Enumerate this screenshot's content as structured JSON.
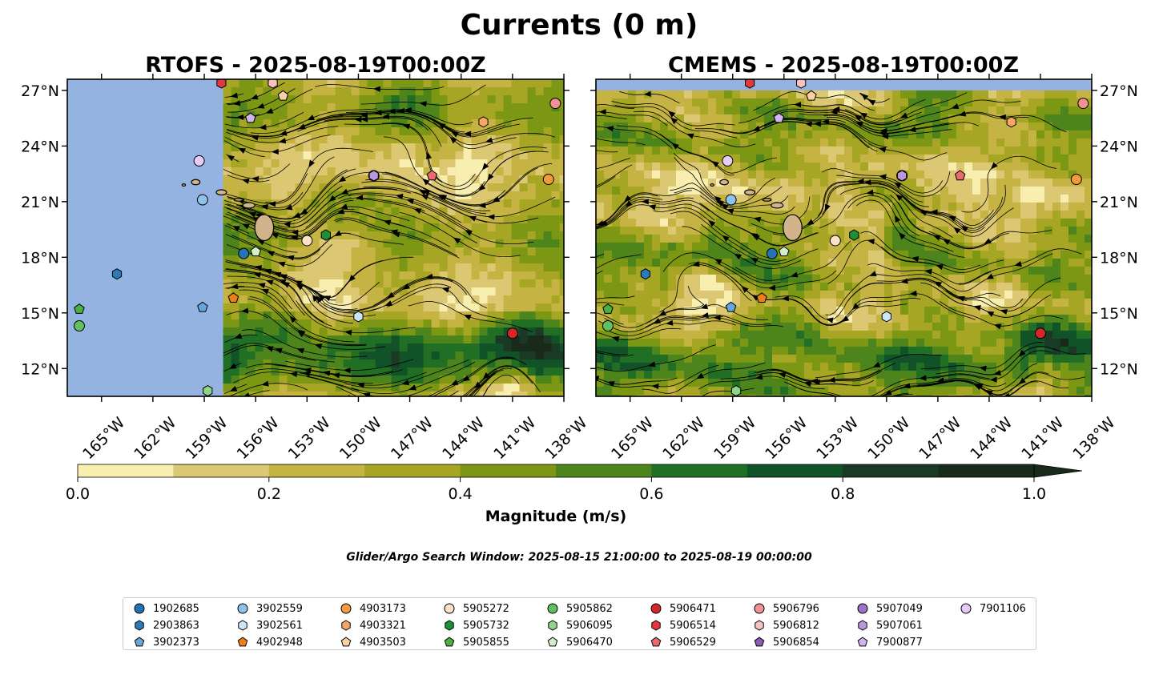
{
  "figure": {
    "title": "Currents (0 m)",
    "search_window": "Glider/Argo Search Window: 2025-08-15 21:00:00 to 2025-08-19 00:00:00"
  },
  "chart_data": [
    {
      "type": "map",
      "title": "RTOFS - 2025-08-19T00:00Z",
      "lon_range": [
        -167,
        -138
      ],
      "lat_range": [
        10.5,
        27.6
      ],
      "x_ticks": [
        "165°W",
        "162°W",
        "159°W",
        "156°W",
        "153°W",
        "150°W",
        "147°W",
        "144°W",
        "141°W",
        "138°W"
      ],
      "y_ticks": [
        "27°N",
        "24°N",
        "21°N",
        "18°N",
        "15°N",
        "12°N"
      ],
      "data_coverage_west_lon": -157.9
    },
    {
      "type": "map",
      "title": "CMEMS - 2025-08-19T00:00Z",
      "lon_range": [
        -167,
        -138
      ],
      "lat_range": [
        10.5,
        27.6
      ],
      "x_ticks": [
        "165°W",
        "162°W",
        "159°W",
        "156°W",
        "153°W",
        "150°W",
        "147°W",
        "144°W",
        "141°W",
        "138°W"
      ],
      "y_ticks": [
        "27°N",
        "24°N",
        "21°N",
        "18°N",
        "15°N",
        "12°N"
      ],
      "data_coverage_north_lat": 27.0
    }
  ],
  "colorbar": {
    "label": "Magnitude (m/s)",
    "min": 0.0,
    "max": 1.0,
    "extend": "max",
    "levels": [
      0.0,
      0.1,
      0.2,
      0.3,
      0.4,
      0.5,
      0.6,
      0.7,
      0.8,
      0.9,
      1.0
    ],
    "ticks": [
      "0.0",
      "0.2",
      "0.4",
      "0.6",
      "0.8",
      "1.0"
    ],
    "colors": [
      "#f7eeaf",
      "#dcc873",
      "#c5b443",
      "#a6a624",
      "#7c9714",
      "#4d841c",
      "#216f25",
      "#125228",
      "#1a3a25",
      "#1a2a1a"
    ]
  },
  "colors": {
    "ocean": "#94b3e0",
    "land": "#d2b48c"
  },
  "floats": [
    {
      "id": "1902685",
      "color": "#2474b5",
      "marker": "circle",
      "lon": -156.7,
      "lat": 18.2
    },
    {
      "id": "2903863",
      "color": "#2b7bb9",
      "marker": "hexagon",
      "lon": -164.1,
      "lat": 17.1
    },
    {
      "id": "3902373",
      "color": "#64a7dd",
      "marker": "pentagon",
      "lon": -159.1,
      "lat": 15.3
    },
    {
      "id": "3902559",
      "color": "#8ec2ea",
      "marker": "circle",
      "lon": -159.1,
      "lat": 21.1
    },
    {
      "id": "3902561",
      "color": "#cde6f7",
      "marker": "hexagon",
      "lon": -150.0,
      "lat": 14.8
    },
    {
      "id": "4902948",
      "color": "#f07e17",
      "marker": "pentagon",
      "lon": -157.3,
      "lat": 15.8
    },
    {
      "id": "4903173",
      "color": "#f39a3c",
      "marker": "circle",
      "lon": -138.9,
      "lat": 22.2
    },
    {
      "id": "4903321",
      "color": "#f6a765",
      "marker": "hexagon",
      "lon": -142.7,
      "lat": 25.3
    },
    {
      "id": "4903503",
      "color": "#f9cfa5",
      "marker": "pentagon",
      "lon": -154.4,
      "lat": 26.7
    },
    {
      "id": "5905272",
      "color": "#fbe1c6",
      "marker": "circle",
      "lon": -153.0,
      "lat": 18.9
    },
    {
      "id": "5905732",
      "color": "#1f8f35",
      "marker": "hexagon",
      "lon": -151.9,
      "lat": 19.2
    },
    {
      "id": "5905855",
      "color": "#4bb043",
      "marker": "pentagon",
      "lon": -166.3,
      "lat": 15.2
    },
    {
      "id": "5905862",
      "color": "#63c060",
      "marker": "circle",
      "lon": -166.3,
      "lat": 14.3
    },
    {
      "id": "5906095",
      "color": "#8fd48b",
      "marker": "hexagon",
      "lon": -158.8,
      "lat": 10.8
    },
    {
      "id": "5906470",
      "color": "#d2f0c8",
      "marker": "pentagon",
      "lon": -156.0,
      "lat": 18.3
    },
    {
      "id": "5906471",
      "color": "#d7262a",
      "marker": "circle",
      "lon": -141.0,
      "lat": 13.9
    },
    {
      "id": "5906514",
      "color": "#e3383e",
      "marker": "hexagon",
      "lon": -158.0,
      "lat": 27.4
    },
    {
      "id": "5906529",
      "color": "#ea6a6f",
      "marker": "pentagon",
      "lon": -145.7,
      "lat": 22.4
    },
    {
      "id": "5906796",
      "color": "#f19191",
      "marker": "circle",
      "lon": -138.5,
      "lat": 26.3
    },
    {
      "id": "5906812",
      "color": "#f7c2bf",
      "marker": "hexagon",
      "lon": -155.0,
      "lat": 27.4
    },
    {
      "id": "5906854",
      "color": "#8a5cb8",
      "marker": "pentagon",
      "lon": -156.3,
      "lat": 25.5
    },
    {
      "id": "5907049",
      "color": "#9b73c7",
      "marker": "circle",
      "lon": -149.1,
      "lat": 22.4
    },
    {
      "id": "5907061",
      "color": "#b897db",
      "marker": "hexagon",
      "lon": -149.1,
      "lat": 22.4
    },
    {
      "id": "7900877",
      "color": "#d2b5ee",
      "marker": "pentagon",
      "lon": -156.3,
      "lat": 25.5
    },
    {
      "id": "7901106",
      "color": "#e6ccf6",
      "marker": "circle",
      "lon": -159.3,
      "lat": 23.2
    }
  ]
}
